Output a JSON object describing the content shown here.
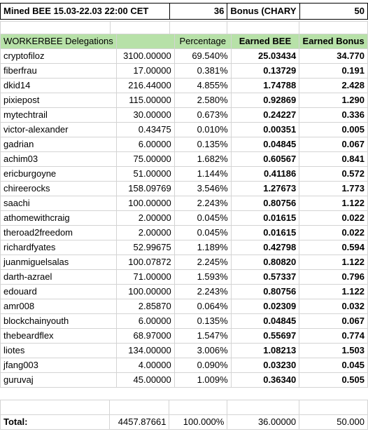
{
  "top": {
    "label": "Mined BEE 15.03-22.03 22:00 CET",
    "mined_value": "36",
    "bonus_label": "Bonus (CHARY",
    "bonus_value": "50"
  },
  "header": {
    "col1": "WORKERBEE Delegations",
    "col2": "",
    "col3": "Percentage",
    "col4": "Earned BEE",
    "col5": "Earned Bonus"
  },
  "rows": [
    {
      "name": "cryptofiloz",
      "amount": "3100.00000",
      "pct": "69.540%",
      "bee": "25.03434",
      "bonus": "34.770"
    },
    {
      "name": "fiberfrau",
      "amount": "17.00000",
      "pct": "0.381%",
      "bee": "0.13729",
      "bonus": "0.191"
    },
    {
      "name": "dkid14",
      "amount": "216.44000",
      "pct": "4.855%",
      "bee": "1.74788",
      "bonus": "2.428"
    },
    {
      "name": "pixiepost",
      "amount": "115.00000",
      "pct": "2.580%",
      "bee": "0.92869",
      "bonus": "1.290"
    },
    {
      "name": "mytechtrail",
      "amount": "30.00000",
      "pct": "0.673%",
      "bee": "0.24227",
      "bonus": "0.336"
    },
    {
      "name": "victor-alexander",
      "amount": "0.43475",
      "pct": "0.010%",
      "bee": "0.00351",
      "bonus": "0.005"
    },
    {
      "name": "gadrian",
      "amount": "6.00000",
      "pct": "0.135%",
      "bee": "0.04845",
      "bonus": "0.067"
    },
    {
      "name": "achim03",
      "amount": "75.00000",
      "pct": "1.682%",
      "bee": "0.60567",
      "bonus": "0.841"
    },
    {
      "name": "ericburgoyne",
      "amount": "51.00000",
      "pct": "1.144%",
      "bee": "0.41186",
      "bonus": "0.572"
    },
    {
      "name": "chireerocks",
      "amount": "158.09769",
      "pct": "3.546%",
      "bee": "1.27673",
      "bonus": "1.773"
    },
    {
      "name": "saachi",
      "amount": "100.00000",
      "pct": "2.243%",
      "bee": "0.80756",
      "bonus": "1.122"
    },
    {
      "name": "athomewithcraig",
      "amount": "2.00000",
      "pct": "0.045%",
      "bee": "0.01615",
      "bonus": "0.022"
    },
    {
      "name": "theroad2freedom",
      "amount": "2.00000",
      "pct": "0.045%",
      "bee": "0.01615",
      "bonus": "0.022"
    },
    {
      "name": "richardfyates",
      "amount": "52.99675",
      "pct": "1.189%",
      "bee": "0.42798",
      "bonus": "0.594"
    },
    {
      "name": "juanmiguelsalas",
      "amount": "100.07872",
      "pct": "2.245%",
      "bee": "0.80820",
      "bonus": "1.122"
    },
    {
      "name": "darth-azrael",
      "amount": "71.00000",
      "pct": "1.593%",
      "bee": "0.57337",
      "bonus": "0.796"
    },
    {
      "name": "edouard",
      "amount": "100.00000",
      "pct": "2.243%",
      "bee": "0.80756",
      "bonus": "1.122"
    },
    {
      "name": "amr008",
      "amount": "2.85870",
      "pct": "0.064%",
      "bee": "0.02309",
      "bonus": "0.032"
    },
    {
      "name": "blockchainyouth",
      "amount": "6.00000",
      "pct": "0.135%",
      "bee": "0.04845",
      "bonus": "0.067"
    },
    {
      "name": "thebeardflex",
      "amount": "68.97000",
      "pct": "1.547%",
      "bee": "0.55697",
      "bonus": "0.774"
    },
    {
      "name": "liotes",
      "amount": "134.00000",
      "pct": "3.006%",
      "bee": "1.08213",
      "bonus": "1.503"
    },
    {
      "name": "jfang003",
      "amount": "4.00000",
      "pct": "0.090%",
      "bee": "0.03230",
      "bonus": "0.045"
    },
    {
      "name": "guruvaj",
      "amount": "45.00000",
      "pct": "1.009%",
      "bee": "0.36340",
      "bonus": "0.505"
    }
  ],
  "total": {
    "label": "Total:",
    "amount": "4457.87661",
    "pct": "100.000%",
    "bee": "36.00000",
    "bonus": "50.000"
  }
}
